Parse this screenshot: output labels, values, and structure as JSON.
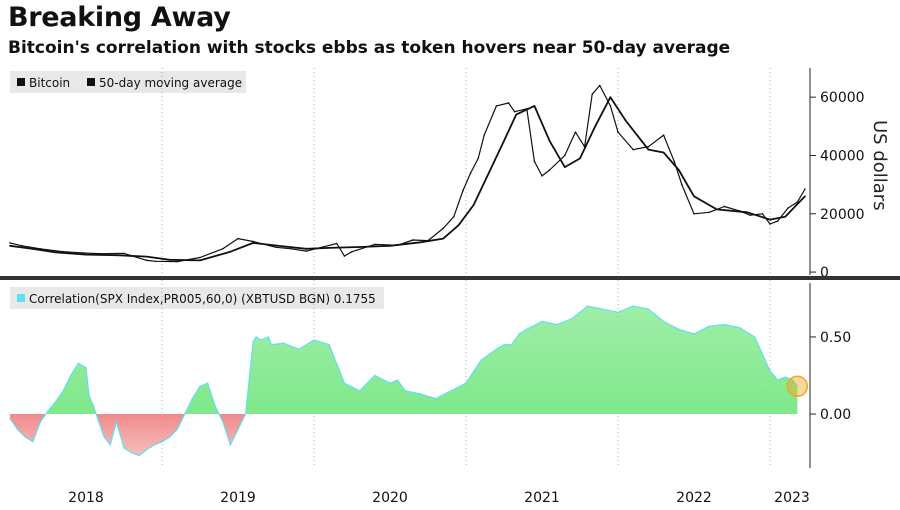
{
  "header": {
    "title": "Breaking Away",
    "subtitle": "Bitcoin's correlation with stocks ebbs as token hovers near 50-day average"
  },
  "colors": {
    "price_line": "#111111",
    "positive_fill": "#7fe88a",
    "negative_fill": "#f08a8a",
    "corr_edge": "#5fe0f0",
    "highlight": "#f5a623"
  },
  "chart_data": [
    {
      "type": "line",
      "panel": "top",
      "legend": [
        "Bitcoin",
        "50-day moving average"
      ],
      "ylabel": "US dollars",
      "ylim": [
        -1000,
        70000
      ],
      "yticks": [
        0,
        20000,
        40000,
        60000
      ],
      "ytick_labels": [
        "0",
        "20000",
        "40000",
        "60000"
      ],
      "x_range": [
        2018.0,
        2023.25
      ],
      "series": [
        {
          "name": "Bitcoin",
          "x": [
            2018.0,
            2018.08,
            2018.2,
            2018.35,
            2018.5,
            2018.6,
            2018.75,
            2018.9,
            2018.96,
            2019.1,
            2019.25,
            2019.4,
            2019.5,
            2019.6,
            2019.75,
            2019.85,
            2019.95,
            2020.05,
            2020.15,
            2020.2,
            2020.25,
            2020.4,
            2020.55,
            2020.65,
            2020.75,
            2020.85,
            2020.92,
            2020.98,
            2021.03,
            2021.08,
            2021.12,
            2021.2,
            2021.28,
            2021.32,
            2021.4,
            2021.45,
            2021.5,
            2021.55,
            2021.65,
            2021.72,
            2021.78,
            2021.83,
            2021.88,
            2021.95,
            2022.0,
            2022.1,
            2022.2,
            2022.3,
            2022.37,
            2022.42,
            2022.5,
            2022.6,
            2022.7,
            2022.8,
            2022.87,
            2022.95,
            2023.0,
            2023.05,
            2023.12,
            2023.18,
            2023.23
          ],
          "values": [
            10000,
            9000,
            8000,
            7000,
            6500,
            6300,
            6400,
            4000,
            3700,
            3600,
            5000,
            8000,
            11500,
            10500,
            8500,
            8000,
            7200,
            8500,
            9800,
            5500,
            7000,
            9500,
            9200,
            11000,
            10800,
            15000,
            19000,
            28000,
            34000,
            39000,
            47000,
            57000,
            58000,
            55000,
            56000,
            38000,
            33000,
            35000,
            40000,
            48000,
            43000,
            61000,
            64000,
            57000,
            48000,
            42000,
            43000,
            47000,
            38000,
            30000,
            20000,
            20500,
            22500,
            21000,
            19500,
            20000,
            16500,
            17500,
            22000,
            24000,
            28500
          ]
        },
        {
          "name": "50-day moving average",
          "x": [
            2018.0,
            2018.15,
            2018.3,
            2018.5,
            2018.7,
            2018.9,
            2019.05,
            2019.25,
            2019.45,
            2019.6,
            2019.8,
            2019.95,
            2020.1,
            2020.3,
            2020.5,
            2020.7,
            2020.85,
            2020.95,
            2021.05,
            2021.15,
            2021.25,
            2021.33,
            2021.45,
            2021.55,
            2021.65,
            2021.75,
            2021.85,
            2021.95,
            2022.05,
            2022.2,
            2022.3,
            2022.4,
            2022.5,
            2022.65,
            2022.85,
            2023.0,
            2023.1,
            2023.23
          ],
          "values": [
            9000,
            8000,
            6800,
            6000,
            5800,
            5300,
            4200,
            4000,
            7000,
            10000,
            8800,
            8000,
            8300,
            8600,
            9000,
            10200,
            11500,
            16000,
            23000,
            34000,
            45000,
            54000,
            57000,
            45000,
            36000,
            39000,
            50000,
            60000,
            52000,
            42000,
            41000,
            35000,
            26000,
            21500,
            20500,
            18000,
            19000,
            26000
          ]
        }
      ]
    },
    {
      "type": "area",
      "panel": "bottom",
      "legend": [
        "Correlation(SPX Index,PR005,60,0) (XBTUSD BGN) 0.1755"
      ],
      "ylim": [
        -0.35,
        0.85
      ],
      "yticks": [
        0.0,
        0.5
      ],
      "ytick_labels": [
        "0.00",
        "0.50"
      ],
      "x_range": [
        2018.0,
        2023.25
      ],
      "x_tick_labels": [
        "2018",
        "2019",
        "2020",
        "2021",
        "2022",
        "2023"
      ],
      "x_tick_years": [
        2018,
        2019,
        2020,
        2021,
        2022,
        2023
      ],
      "series": [
        {
          "name": "Correlation(SPX Index,PR005,60,0) (XBTUSD BGN)",
          "x": [
            2018.0,
            2018.05,
            2018.1,
            2018.15,
            2018.2,
            2018.25,
            2018.3,
            2018.35,
            2018.4,
            2018.45,
            2018.5,
            2018.52,
            2018.55,
            2018.58,
            2018.62,
            2018.66,
            2018.7,
            2018.75,
            2018.8,
            2018.85,
            2018.9,
            2018.95,
            2019.0,
            2019.05,
            2019.1,
            2019.15,
            2019.2,
            2019.25,
            2019.3,
            2019.35,
            2019.4,
            2019.45,
            2019.5,
            2019.55,
            2019.6,
            2019.62,
            2019.65,
            2019.7,
            2019.72,
            2019.8,
            2019.9,
            2020.0,
            2020.1,
            2020.2,
            2020.3,
            2020.4,
            2020.5,
            2020.55,
            2020.6,
            2020.7,
            2020.8,
            2020.9,
            2021.0,
            2021.1,
            2021.2,
            2021.25,
            2021.3,
            2021.35,
            2021.4,
            2021.5,
            2021.6,
            2021.7,
            2021.8,
            2021.9,
            2022.0,
            2022.1,
            2022.2,
            2022.3,
            2022.4,
            2022.5,
            2022.6,
            2022.7,
            2022.8,
            2022.9,
            2023.0,
            2023.05,
            2023.1,
            2023.15,
            2023.18
          ],
          "values": [
            -0.03,
            -0.1,
            -0.15,
            -0.18,
            -0.05,
            0.02,
            0.08,
            0.15,
            0.25,
            0.33,
            0.3,
            0.12,
            0.05,
            -0.04,
            -0.15,
            -0.2,
            -0.05,
            -0.22,
            -0.25,
            -0.27,
            -0.23,
            -0.2,
            -0.18,
            -0.15,
            -0.1,
            0.0,
            0.1,
            0.18,
            0.2,
            0.05,
            -0.05,
            -0.2,
            -0.1,
            0.0,
            0.47,
            0.5,
            0.48,
            0.5,
            0.45,
            0.46,
            0.42,
            0.48,
            0.45,
            0.2,
            0.15,
            0.25,
            0.2,
            0.22,
            0.15,
            0.13,
            0.1,
            0.15,
            0.2,
            0.35,
            0.42,
            0.45,
            0.45,
            0.52,
            0.55,
            0.6,
            0.58,
            0.62,
            0.7,
            0.68,
            0.66,
            0.7,
            0.68,
            0.6,
            0.55,
            0.52,
            0.57,
            0.58,
            0.56,
            0.5,
            0.28,
            0.22,
            0.24,
            0.22,
            0.18
          ]
        }
      ]
    }
  ]
}
